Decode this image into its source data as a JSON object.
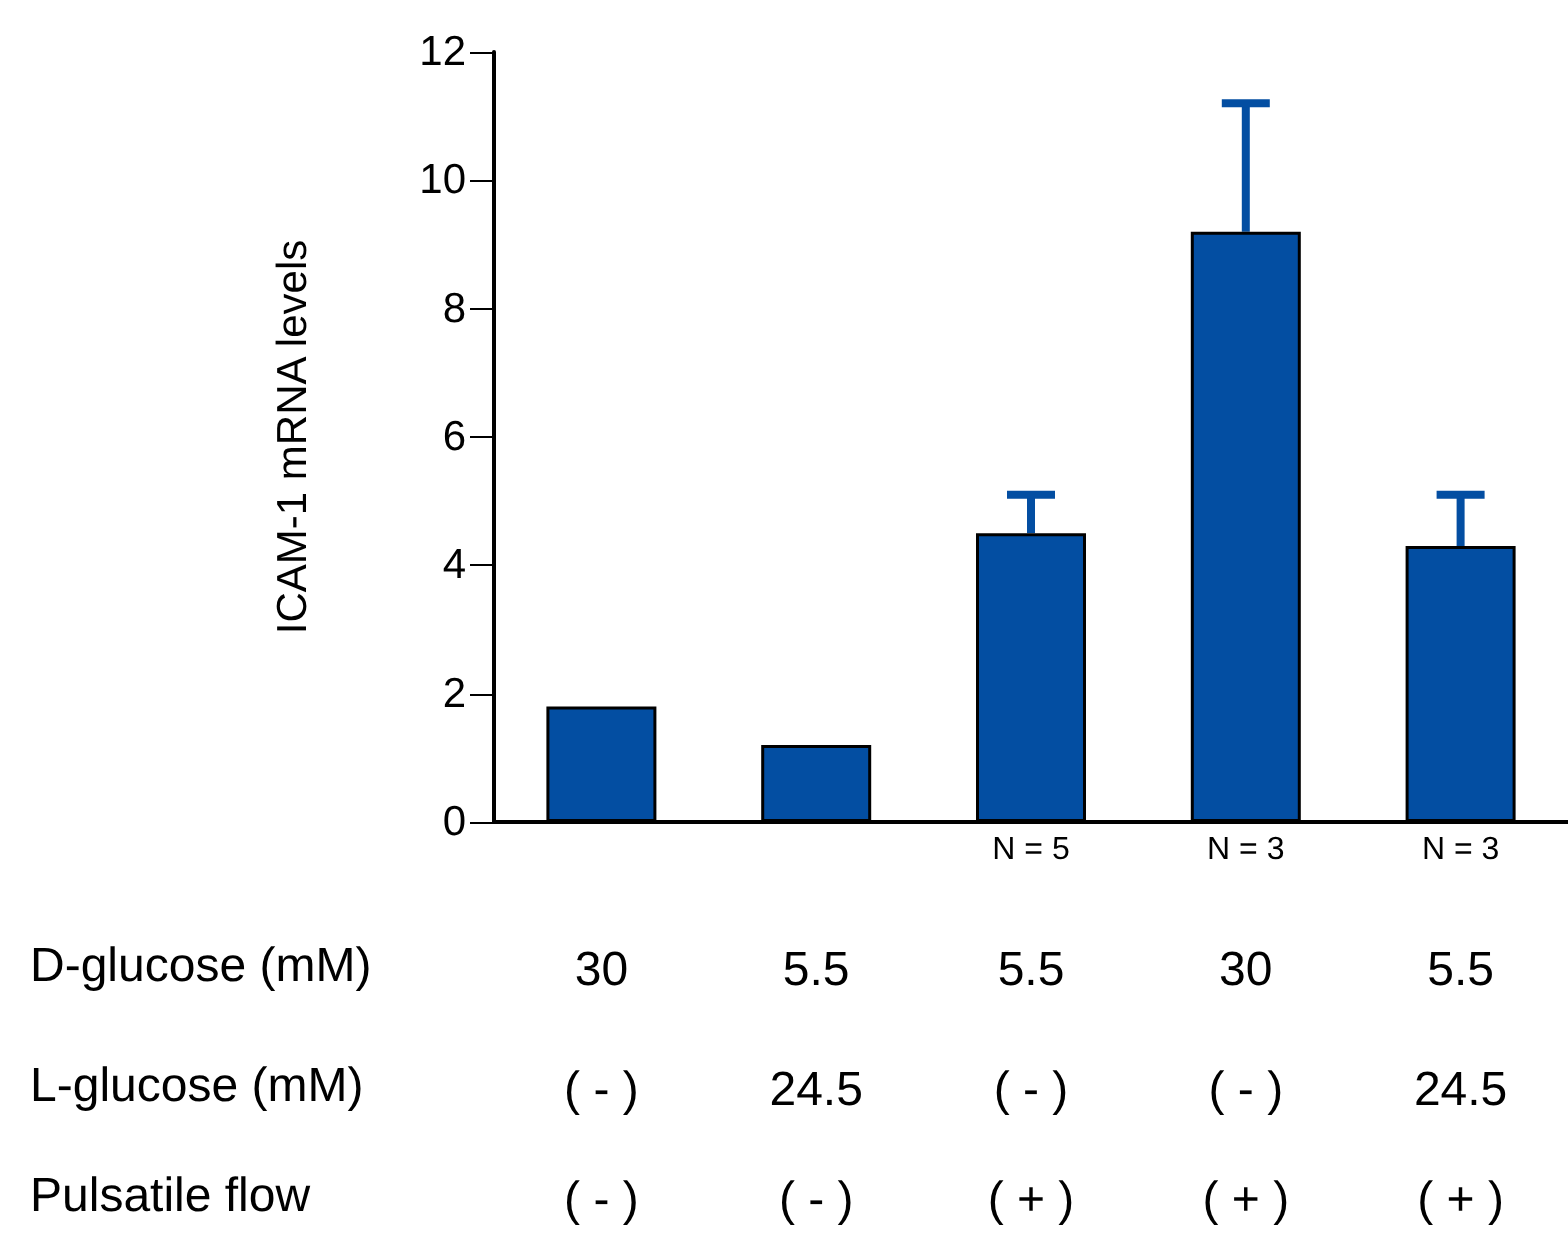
{
  "chart_data": {
    "type": "bar",
    "ylabel": "ICAM-1 mRNA levels",
    "categories": [
      null,
      null,
      "N = 5",
      "N = 3",
      "N = 3"
    ],
    "values": [
      1.8,
      1.2,
      4.5,
      9.2,
      4.3
    ],
    "errors": [
      null,
      null,
      [
        4.5,
        5.1
      ],
      [
        9.2,
        11.2
      ],
      [
        4.3,
        5.1
      ]
    ],
    "color": "#034ea2",
    "ylim": [
      0,
      12
    ],
    "yticks": [
      0,
      2,
      4,
      6,
      8,
      10,
      12
    ],
    "grid": false,
    "annotations": [
      "D-glucose (mM)",
      "30",
      "5.5",
      "5.5",
      "30",
      "5.5",
      "L-glucose (mM)",
      "( - )",
      "24.5",
      "( - )",
      "( - )",
      "24.5",
      "Pulsatile flow",
      "( - )",
      "( - )",
      "( + )",
      "( + )",
      "( + )"
    ]
  }
}
